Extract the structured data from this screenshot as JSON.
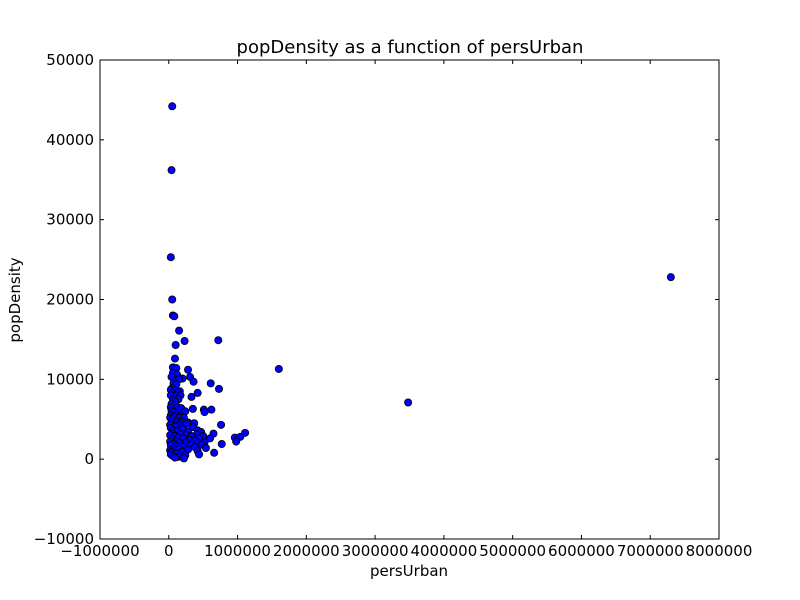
{
  "chart_data": {
    "type": "scatter",
    "title": "popDensity as a function of persUrban",
    "xlabel": "persUrban",
    "ylabel": "popDensity",
    "xlim": [
      -1000000,
      8000000
    ],
    "ylim": [
      -10000,
      50000
    ],
    "xticks": [
      -1000000,
      0,
      1000000,
      2000000,
      3000000,
      4000000,
      5000000,
      6000000,
      7000000,
      8000000
    ],
    "xtick_labels": [
      "−1000000",
      "0",
      "1000000",
      "2000000",
      "3000000",
      "4000000",
      "5000000",
      "6000000",
      "7000000",
      "8000000"
    ],
    "yticks": [
      -10000,
      0,
      10000,
      20000,
      30000,
      40000,
      50000
    ],
    "ytick_labels": [
      "−10000",
      "0",
      "10000",
      "20000",
      "30000",
      "40000",
      "50000"
    ],
    "grid": false,
    "marker_color": "#0000ff",
    "series": [
      {
        "points": [
          [
            50000,
            44200
          ],
          [
            40000,
            36200
          ],
          [
            30000,
            25300
          ],
          [
            50000,
            20000
          ],
          [
            60000,
            18000
          ],
          [
            80000,
            17900
          ],
          [
            150000,
            16100
          ],
          [
            230000,
            14800
          ],
          [
            720000,
            14900
          ],
          [
            100000,
            14300
          ],
          [
            90000,
            12600
          ],
          [
            1600000,
            11300
          ],
          [
            60000,
            11500
          ],
          [
            110000,
            11400
          ],
          [
            280000,
            11200
          ],
          [
            60000,
            10800
          ],
          [
            120000,
            10600
          ],
          [
            40000,
            10300
          ],
          [
            200000,
            10100
          ],
          [
            310000,
            10300
          ],
          [
            150000,
            10000
          ],
          [
            360000,
            9700
          ],
          [
            70000,
            9500
          ],
          [
            110000,
            9400
          ],
          [
            610000,
            9500
          ],
          [
            50000,
            8900
          ],
          [
            30000,
            8700
          ],
          [
            90000,
            8600
          ],
          [
            160000,
            8500
          ],
          [
            730000,
            8800
          ],
          [
            50000,
            8300
          ],
          [
            130000,
            8300
          ],
          [
            420000,
            8300
          ],
          [
            30000,
            8000
          ],
          [
            120000,
            8000
          ],
          [
            170000,
            8000
          ],
          [
            60000,
            7500
          ],
          [
            140000,
            7500
          ],
          [
            330000,
            7800
          ],
          [
            90000,
            7200
          ],
          [
            3480000,
            7100
          ],
          [
            40000,
            6900
          ],
          [
            100000,
            6800
          ],
          [
            30000,
            6500
          ],
          [
            130000,
            6500
          ],
          [
            180000,
            6400
          ],
          [
            350000,
            6300
          ],
          [
            510000,
            6200
          ],
          [
            620000,
            6200
          ],
          [
            40000,
            6100
          ],
          [
            70000,
            5900
          ],
          [
            140000,
            5800
          ],
          [
            240000,
            6000
          ],
          [
            520000,
            5900
          ],
          [
            30000,
            5500
          ],
          [
            110000,
            5500
          ],
          [
            20000,
            5200
          ],
          [
            80000,
            5300
          ],
          [
            160000,
            5200
          ],
          [
            220000,
            5200
          ],
          [
            60000,
            5000
          ],
          [
            110000,
            4700
          ],
          [
            190000,
            4700
          ],
          [
            280000,
            4600
          ],
          [
            40000,
            4500
          ],
          [
            170000,
            4500
          ],
          [
            370000,
            4500
          ],
          [
            20000,
            4300
          ],
          [
            140000,
            4300
          ],
          [
            260000,
            4400
          ],
          [
            760000,
            4300
          ],
          [
            100000,
            4100
          ],
          [
            350000,
            4000
          ],
          [
            30000,
            3900
          ],
          [
            200000,
            3800
          ],
          [
            420000,
            3600
          ],
          [
            470000,
            3400
          ],
          [
            60000,
            3600
          ],
          [
            120000,
            3500
          ],
          [
            280000,
            3400
          ],
          [
            1110000,
            3300
          ],
          [
            50000,
            3200
          ],
          [
            170000,
            3100
          ],
          [
            250000,
            3000
          ],
          [
            410000,
            3100
          ],
          [
            650000,
            3200
          ],
          [
            20000,
            3000
          ],
          [
            90000,
            2900
          ],
          [
            330000,
            2900
          ],
          [
            500000,
            2900
          ],
          [
            960000,
            2700
          ],
          [
            1040000,
            2800
          ],
          [
            130000,
            2700
          ],
          [
            210000,
            2600
          ],
          [
            440000,
            2600
          ],
          [
            600000,
            2600
          ],
          [
            40000,
            2500
          ],
          [
            300000,
            2400
          ],
          [
            380000,
            2300
          ],
          [
            980000,
            2200
          ],
          [
            20000,
            2200
          ],
          [
            110000,
            2200
          ],
          [
            520000,
            2100
          ],
          [
            160000,
            2000
          ],
          [
            250000,
            2100
          ],
          [
            420000,
            2000
          ],
          [
            770000,
            1900
          ],
          [
            60000,
            1900
          ],
          [
            320000,
            1800
          ],
          [
            480000,
            1800
          ],
          [
            30000,
            1700
          ],
          [
            120000,
            1600
          ],
          [
            200000,
            1600
          ],
          [
            380000,
            1500
          ],
          [
            540000,
            1400
          ],
          [
            70000,
            1300
          ],
          [
            150000,
            1300
          ],
          [
            280000,
            1200
          ],
          [
            20000,
            1100
          ],
          [
            420000,
            1000
          ],
          [
            40000,
            900
          ],
          [
            190000,
            900
          ],
          [
            660000,
            800
          ],
          [
            110000,
            700
          ],
          [
            440000,
            600
          ],
          [
            30000,
            600
          ],
          [
            240000,
            500
          ],
          [
            60000,
            400
          ],
          [
            140000,
            300
          ],
          [
            90000,
            200
          ],
          [
            220000,
            100
          ],
          [
            7300000,
            22800
          ]
        ]
      }
    ]
  }
}
